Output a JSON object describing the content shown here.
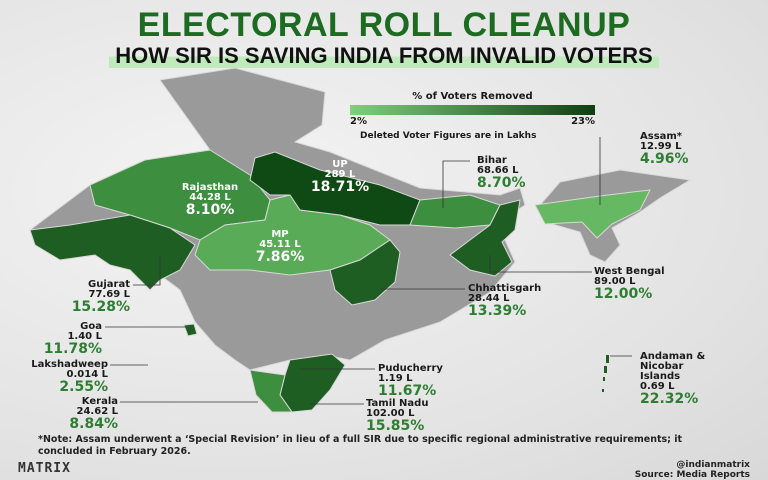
{
  "title": "ELECTORAL ROLL CLEANUP",
  "subtitle": "HOW SIR IS SAVING INDIA FROM INVALID VOTERS",
  "legend": {
    "title": "% of Voters Removed",
    "min": "2%",
    "max": "23%",
    "min_color": "#7fcf7c",
    "max_color": "#0f3f13",
    "note": "Deleted Voter Figures are in Lakhs"
  },
  "regions": {
    "rajasthan": {
      "name": "Rajasthan",
      "deleted": "44.28 L",
      "pct": "8.10%"
    },
    "up": {
      "name": "UP",
      "deleted": "289 L",
      "pct": "18.71%"
    },
    "mp": {
      "name": "MP",
      "deleted": "45.11 L",
      "pct": "7.86%"
    },
    "bihar": {
      "name": "Bihar",
      "deleted": "68.66 L",
      "pct": "8.70%"
    },
    "assam": {
      "name": "Assam*",
      "deleted": "12.99 L",
      "pct": "4.96%"
    },
    "west_bengal": {
      "name": "West Bengal",
      "deleted": "89.00 L",
      "pct": "12.00%"
    },
    "chhattisgarh": {
      "name": "Chhattisgarh",
      "deleted": "28.44 L",
      "pct": "13.39%"
    },
    "gujarat": {
      "name": "Gujarat",
      "deleted": "77.69 L",
      "pct": "15.28%"
    },
    "goa": {
      "name": "Goa",
      "deleted": "1.40 L",
      "pct": "11.78%"
    },
    "lakshadweep": {
      "name": "Lakshadweep",
      "deleted": "0.014 L",
      "pct": "2.55%"
    },
    "kerala": {
      "name": "Kerala",
      "deleted": "24.62 L",
      "pct": "8.84%"
    },
    "puducherry": {
      "name": "Puducherry",
      "deleted": "1.19 L",
      "pct": "11.67%"
    },
    "tamil_nadu": {
      "name": "Tamil Nadu",
      "deleted": "102.00 L",
      "pct": "15.85%"
    },
    "andaman": {
      "name": "Andaman & Nicobar Islands",
      "deleted": "0.69 L",
      "pct": "22.32%"
    }
  },
  "note": "*Note: Assam underwent a ‘Special Revision’ in lieu of a full SIR due to specific regional administrative requirements; it concluded in February 2026.",
  "brand": "MATRIX",
  "handle": "@indianmatrix",
  "source": "Source: Media Reports",
  "colors": {
    "title_green": "#1d6b21",
    "not_covered": "#9a9a9a"
  }
}
